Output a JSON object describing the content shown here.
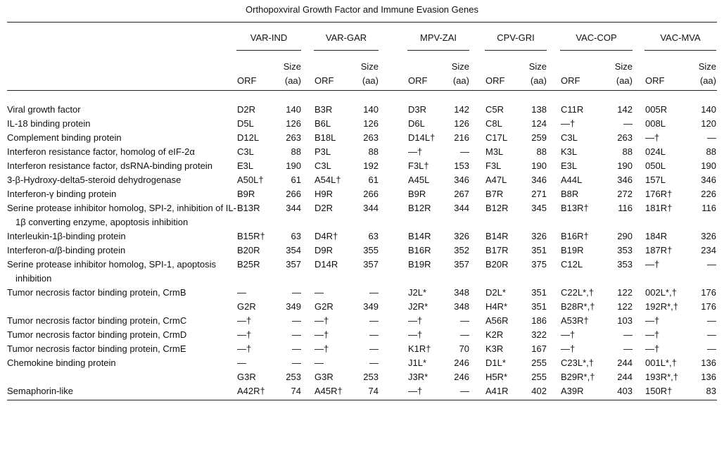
{
  "title": "Orthopoxviral Growth Factor and Immune Evasion Genes",
  "table": {
    "groups": [
      "VAR-IND",
      "VAR-GAR",
      "MPV-ZAI",
      "CPV-GRI",
      "VAC-COP",
      "VAC-MVA"
    ],
    "subheaders": [
      "ORF",
      "Size (aa)"
    ],
    "rows": [
      {
        "label": "Viral growth factor",
        "lines": [
          [
            "D2R",
            140,
            "B3R",
            140,
            "D3R",
            142,
            "C5R",
            138,
            "C11R",
            142,
            "005R",
            140
          ]
        ]
      },
      {
        "label": "IL-18 binding protein",
        "lines": [
          [
            "D5L",
            126,
            "B6L",
            126,
            "D6L",
            126,
            "C8L",
            124,
            "—†",
            "—",
            "008L",
            120
          ]
        ]
      },
      {
        "label": "Complement binding protein",
        "lines": [
          [
            "D12L",
            263,
            "B18L",
            263,
            "D14L†",
            216,
            "C17L",
            259,
            "C3L",
            263,
            "—†",
            "—"
          ]
        ]
      },
      {
        "label": "Interferon resistance factor, homolog of eIF-2α",
        "lines": [
          [
            "C3L",
            88,
            "P3L",
            88,
            "—†",
            "—",
            "M3L",
            88,
            "K3L",
            88,
            "024L",
            88
          ]
        ]
      },
      {
        "label": "Interferon resistance factor, dsRNA-binding protein",
        "lines": [
          [
            "E3L",
            190,
            "C3L",
            192,
            "F3L†",
            153,
            "F3L",
            190,
            "E3L",
            190,
            "050L",
            190
          ]
        ]
      },
      {
        "label": "3-β-Hydroxy-delta5-steroid dehydrogenase",
        "lines": [
          [
            "A50L†",
            61,
            "A54L†",
            61,
            "A45L",
            346,
            "A47L",
            346,
            "A44L",
            346,
            "157L",
            346
          ]
        ]
      },
      {
        "label": "Interferon-γ binding protein",
        "lines": [
          [
            "B9R",
            266,
            "H9R",
            266,
            "B9R",
            267,
            "B7R",
            271,
            "B8R",
            272,
            "176R†",
            226
          ]
        ]
      },
      {
        "label": "Serine protease inhibitor homolog, SPI-2, inhibition of IL-1β converting enzyme, apoptosis inhibition",
        "lines": [
          [
            "B13R",
            344,
            "D2R",
            344,
            "B12R",
            344,
            "B12R",
            345,
            "B13R†",
            116,
            "181R†",
            116
          ]
        ]
      },
      {
        "label": "Interleukin-1β-binding protein",
        "lines": [
          [
            "B15R†",
            63,
            "D4R†",
            63,
            "B14R",
            326,
            "B14R",
            326,
            "B16R†",
            290,
            "184R",
            326
          ]
        ]
      },
      {
        "label": "Interferon-α/β-binding protein",
        "lines": [
          [
            "B20R",
            354,
            "D9R",
            355,
            "B16R",
            352,
            "B17R",
            351,
            "B19R",
            353,
            "187R†",
            234
          ]
        ]
      },
      {
        "label": "Serine protease inhibitor homolog, SPI-1, apoptosis inhibition",
        "lines": [
          [
            "B25R",
            357,
            "D14R",
            357,
            "B19R",
            357,
            "B20R",
            375,
            "C12L",
            353,
            "—†",
            "—"
          ]
        ]
      },
      {
        "label": "Tumor necrosis factor binding protein, CrmB",
        "lines": [
          [
            "—",
            "—",
            "—",
            "—",
            "J2L*",
            348,
            "D2L*",
            351,
            "C22L*,†",
            122,
            "002L*,†",
            176
          ],
          [
            "G2R",
            349,
            "G2R",
            349,
            "J2R*",
            348,
            "H4R*",
            351,
            "B28R*,†",
            122,
            "192R*,†",
            176
          ]
        ]
      },
      {
        "label": "Tumor necrosis factor binding protein, CrmC",
        "lines": [
          [
            "—†",
            "—",
            "—†",
            "—",
            "—†",
            "—",
            "A56R",
            186,
            "A53R†",
            103,
            "—†",
            "—"
          ]
        ]
      },
      {
        "label": "Tumor necrosis factor binding protein, CrmD",
        "lines": [
          [
            "—†",
            "—",
            "—†",
            "—",
            "—†",
            "—",
            "K2R",
            322,
            "—†",
            "—",
            "—†",
            "—"
          ]
        ]
      },
      {
        "label": "Tumor necrosis factor binding protein, CrmE",
        "lines": [
          [
            "—†",
            "—",
            "—†",
            "—",
            "K1R†",
            70,
            "K3R",
            167,
            "—†",
            "—",
            "—†",
            "—"
          ]
        ]
      },
      {
        "label": "Chemokine binding protein",
        "lines": [
          [
            "—",
            "—",
            "—",
            "—",
            "J1L*",
            246,
            "D1L*",
            255,
            "C23L*,†",
            244,
            "001L*,†",
            136
          ],
          [
            "G3R",
            253,
            "G3R",
            253,
            "J3R*",
            246,
            "H5R*",
            255,
            "B29R*,†",
            244,
            "193R*,†",
            136
          ]
        ]
      },
      {
        "label": "Semaphorin-like",
        "lines": [
          [
            "A42R†",
            74,
            "A45R†",
            74,
            "—†",
            "—",
            "A41R",
            402,
            "A39R",
            403,
            "150R†",
            83
          ]
        ]
      }
    ]
  }
}
